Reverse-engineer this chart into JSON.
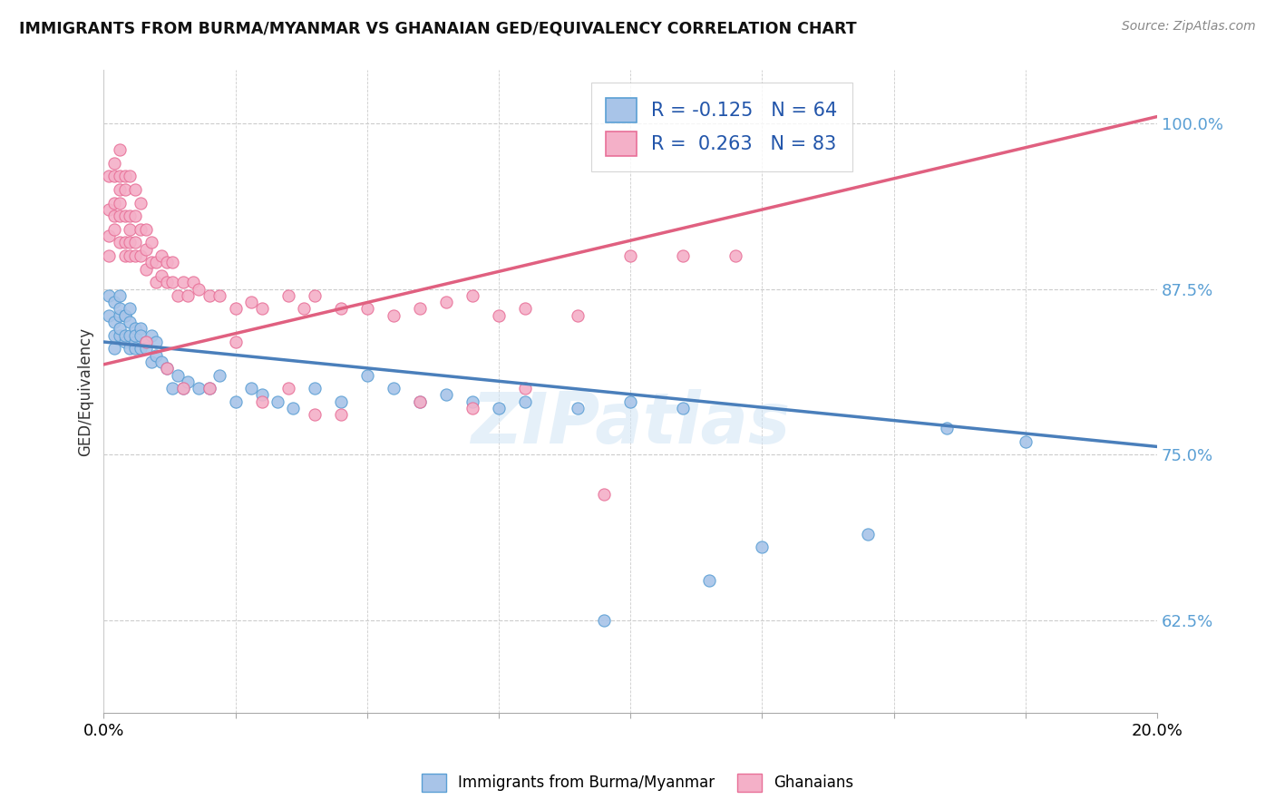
{
  "title": "IMMIGRANTS FROM BURMA/MYANMAR VS GHANAIAN GED/EQUIVALENCY CORRELATION CHART",
  "source": "Source: ZipAtlas.com",
  "ylabel": "GED/Equivalency",
  "ytick_vals": [
    0.625,
    0.75,
    0.875,
    1.0
  ],
  "ytick_labels": [
    "62.5%",
    "75.0%",
    "87.5%",
    "100.0%"
  ],
  "xlim": [
    0.0,
    0.2
  ],
  "ylim": [
    0.555,
    1.04
  ],
  "legend_label_blue": "Immigrants from Burma/Myanmar",
  "legend_label_pink": "Ghanaians",
  "R_blue": -0.125,
  "N_blue": 64,
  "R_pink": 0.263,
  "N_pink": 83,
  "blue_fill": "#a8c4e8",
  "blue_edge": "#5a9fd4",
  "blue_line": "#4a7fbb",
  "pink_fill": "#f4b0c8",
  "pink_edge": "#e87098",
  "pink_line": "#e06080",
  "watermark": "ZIPatlas",
  "blue_line_x0": 0.0,
  "blue_line_y0": 0.835,
  "blue_line_x1": 0.2,
  "blue_line_y1": 0.756,
  "pink_line_x0": 0.0,
  "pink_line_y0": 0.818,
  "pink_line_x1": 0.2,
  "pink_line_y1": 1.005,
  "blue_x": [
    0.001,
    0.001,
    0.002,
    0.002,
    0.002,
    0.002,
    0.003,
    0.003,
    0.003,
    0.003,
    0.003,
    0.004,
    0.004,
    0.004,
    0.004,
    0.005,
    0.005,
    0.005,
    0.005,
    0.006,
    0.006,
    0.006,
    0.006,
    0.007,
    0.007,
    0.007,
    0.008,
    0.008,
    0.009,
    0.009,
    0.01,
    0.01,
    0.011,
    0.012,
    0.013,
    0.014,
    0.015,
    0.016,
    0.018,
    0.02,
    0.022,
    0.025,
    0.028,
    0.03,
    0.033,
    0.036,
    0.04,
    0.045,
    0.05,
    0.055,
    0.06,
    0.065,
    0.07,
    0.075,
    0.08,
    0.09,
    0.1,
    0.11,
    0.125,
    0.145,
    0.16,
    0.175,
    0.115,
    0.095
  ],
  "blue_y": [
    0.87,
    0.855,
    0.865,
    0.84,
    0.83,
    0.85,
    0.87,
    0.855,
    0.84,
    0.86,
    0.845,
    0.835,
    0.855,
    0.84,
    0.855,
    0.85,
    0.84,
    0.83,
    0.86,
    0.835,
    0.845,
    0.84,
    0.83,
    0.845,
    0.83,
    0.84,
    0.835,
    0.83,
    0.84,
    0.82,
    0.835,
    0.825,
    0.82,
    0.815,
    0.8,
    0.81,
    0.8,
    0.805,
    0.8,
    0.8,
    0.81,
    0.79,
    0.8,
    0.795,
    0.79,
    0.785,
    0.8,
    0.79,
    0.81,
    0.8,
    0.79,
    0.795,
    0.79,
    0.785,
    0.79,
    0.785,
    0.79,
    0.785,
    0.68,
    0.69,
    0.77,
    0.76,
    0.655,
    0.625
  ],
  "pink_x": [
    0.001,
    0.001,
    0.001,
    0.001,
    0.002,
    0.002,
    0.002,
    0.002,
    0.002,
    0.003,
    0.003,
    0.003,
    0.003,
    0.003,
    0.003,
    0.004,
    0.004,
    0.004,
    0.004,
    0.004,
    0.005,
    0.005,
    0.005,
    0.005,
    0.005,
    0.006,
    0.006,
    0.006,
    0.006,
    0.007,
    0.007,
    0.007,
    0.008,
    0.008,
    0.008,
    0.009,
    0.009,
    0.01,
    0.01,
    0.011,
    0.011,
    0.012,
    0.012,
    0.013,
    0.013,
    0.014,
    0.015,
    0.016,
    0.017,
    0.018,
    0.02,
    0.022,
    0.025,
    0.028,
    0.03,
    0.035,
    0.038,
    0.04,
    0.045,
    0.05,
    0.055,
    0.06,
    0.065,
    0.07,
    0.075,
    0.08,
    0.09,
    0.1,
    0.11,
    0.12,
    0.025,
    0.035,
    0.045,
    0.008,
    0.012,
    0.015,
    0.02,
    0.03,
    0.04,
    0.06,
    0.07,
    0.08,
    0.095
  ],
  "pink_y": [
    0.9,
    0.915,
    0.935,
    0.96,
    0.92,
    0.93,
    0.94,
    0.96,
    0.97,
    0.91,
    0.93,
    0.94,
    0.95,
    0.96,
    0.98,
    0.9,
    0.91,
    0.93,
    0.95,
    0.96,
    0.9,
    0.91,
    0.92,
    0.93,
    0.96,
    0.9,
    0.91,
    0.93,
    0.95,
    0.9,
    0.92,
    0.94,
    0.89,
    0.905,
    0.92,
    0.895,
    0.91,
    0.895,
    0.88,
    0.885,
    0.9,
    0.88,
    0.895,
    0.88,
    0.895,
    0.87,
    0.88,
    0.87,
    0.88,
    0.875,
    0.87,
    0.87,
    0.86,
    0.865,
    0.86,
    0.87,
    0.86,
    0.87,
    0.86,
    0.86,
    0.855,
    0.86,
    0.865,
    0.87,
    0.855,
    0.86,
    0.855,
    0.9,
    0.9,
    0.9,
    0.835,
    0.8,
    0.78,
    0.835,
    0.815,
    0.8,
    0.8,
    0.79,
    0.78,
    0.79,
    0.785,
    0.8,
    0.72
  ]
}
